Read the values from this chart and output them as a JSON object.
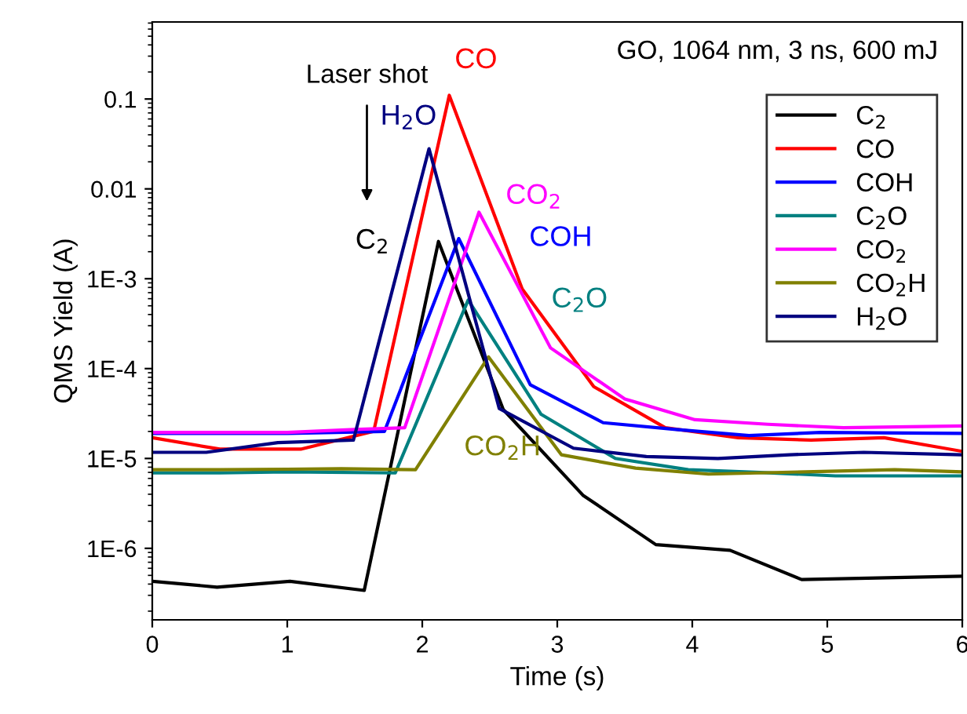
{
  "chart_data": {
    "type": "line",
    "xlabel": "Time (s)",
    "ylabel": "QMS Yield (A)",
    "log": true,
    "grid": false,
    "legend": "top right",
    "xlim": [
      0,
      6
    ],
    "xticks": [
      0,
      1,
      2,
      3,
      4,
      5,
      6
    ],
    "ylim": [
      1.6e-07,
      0.72
    ],
    "yticks": [
      {
        "value": 1e-06,
        "label": "1E-6"
      },
      {
        "value": 1e-05,
        "label": "1E-5"
      },
      {
        "value": 0.0001,
        "label": "1E-4"
      },
      {
        "value": 0.001,
        "label": "1E-3"
      },
      0.01,
      0.1
    ],
    "series": [
      {
        "name": "C$_{2}$",
        "color": "#000000",
        "x": [
          0,
          0.48,
          1.02,
          1.57,
          2.12,
          2.6,
          3.19,
          3.73,
          4.28,
          4.81,
          6
        ],
        "values": [
          4.3e-07,
          3.7e-07,
          4.3e-07,
          3.4e-07,
          0.0026,
          3.5e-05,
          3.9e-06,
          1.1e-06,
          9.5e-07,
          4.5e-07,
          4.9e-07
        ]
      },
      {
        "name": "CO",
        "color": "#ff0000",
        "x": [
          0,
          0.5,
          1.1,
          1.64,
          2.2,
          2.74,
          3.27,
          3.8,
          4.34,
          4.88,
          5.42,
          6
        ],
        "values": [
          1.7e-05,
          1.27e-05,
          1.27e-05,
          2e-05,
          0.11,
          0.00077,
          6.3e-05,
          2.2e-05,
          1.7e-05,
          1.6e-05,
          1.7e-05,
          1.2e-05
        ]
      },
      {
        "name": "COH",
        "color": "#0000ff",
        "x": [
          0,
          0.5,
          1,
          1.72,
          2.27,
          2.8,
          3.34,
          3.88,
          4.42,
          4.95,
          6
        ],
        "values": [
          1.9e-05,
          1.9e-05,
          1.9e-05,
          2e-05,
          0.0028,
          6.6e-05,
          2.5e-05,
          2.1e-05,
          1.8e-05,
          1.95e-05,
          1.9e-05
        ]
      },
      {
        "name": "C$_{2}$O",
        "color": "#008080",
        "x": [
          0,
          0.5,
          1,
          1.8,
          2.34,
          2.88,
          3.43,
          3.97,
          4.5,
          5.06,
          6
        ],
        "values": [
          6.9e-06,
          6.9e-06,
          7.1e-06,
          6.9e-06,
          0.00058,
          3.1e-05,
          1e-05,
          7.5e-06,
          7e-06,
          6.4e-06,
          6.4e-06
        ]
      },
      {
        "name": "CO$_{2}$",
        "color": "#ff00ff",
        "x": [
          0,
          0.5,
          1,
          1.5,
          1.87,
          2.42,
          2.95,
          3.5,
          4.02,
          4.56,
          5.12,
          6
        ],
        "values": [
          1.95e-05,
          1.95e-05,
          1.95e-05,
          2.1e-05,
          2.2e-05,
          0.0055,
          0.00017,
          4.6e-05,
          2.7e-05,
          2.4e-05,
          2.2e-05,
          2.3e-05
        ]
      },
      {
        "name": "CO$_{2}$H",
        "color": "#808000",
        "x": [
          0,
          0.5,
          1,
          1.4,
          1.95,
          2.49,
          3.03,
          3.58,
          4.12,
          5.5,
          6
        ],
        "values": [
          7.5e-06,
          7.5e-06,
          7.6e-06,
          7.7e-06,
          7.5e-06,
          0.000135,
          1.1e-05,
          7.8e-06,
          6.7e-06,
          7.5e-06,
          7.1e-06
        ]
      },
      {
        "name": "H$_{2}$O",
        "color": "#000080",
        "x": [
          0,
          0.4,
          0.93,
          1.49,
          2.05,
          2.57,
          3.12,
          3.66,
          4.19,
          4.72,
          5.27,
          6
        ],
        "values": [
          1.17e-05,
          1.17e-05,
          1.5e-05,
          1.6e-05,
          0.028,
          3.6e-05,
          1.3e-05,
          1.05e-05,
          1e-05,
          1.1e-05,
          1.17e-05,
          1.1e-05
        ]
      }
    ],
    "annotations": [
      "GO, 1064 nm, 3 ns, 600 mJ",
      "Laser shot"
    ]
  }
}
